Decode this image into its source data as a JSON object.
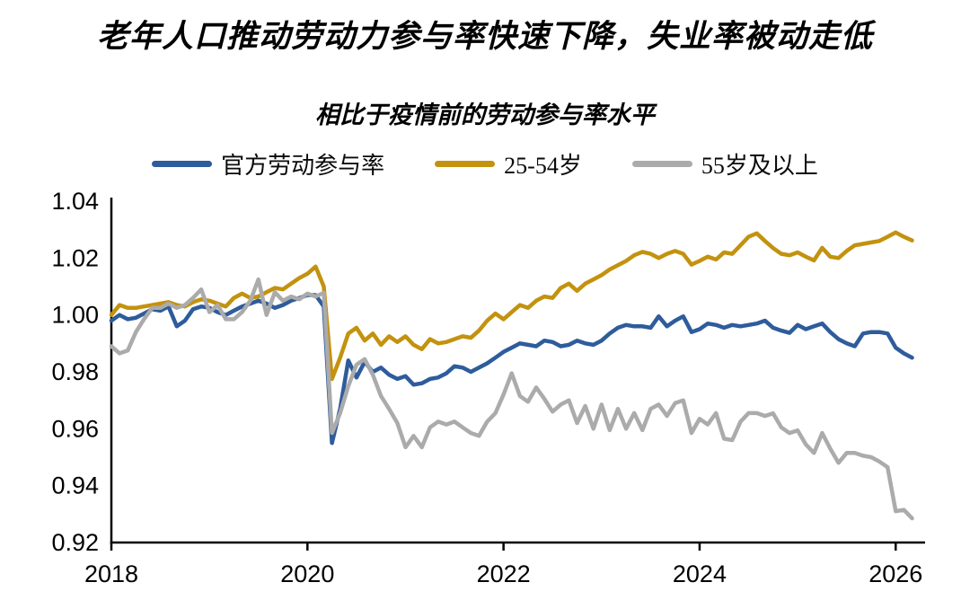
{
  "page": {
    "background": "#ffffff"
  },
  "chart_data": {
    "type": "line",
    "title": "老年人口推动劳动力参与率快速下降，失业率被动走低",
    "subtitle": "相比于疫情前的劳动参与率水平",
    "legend_position": "top",
    "grid": false,
    "axis_color": "#000000",
    "xlim": [
      2018,
      2026.3
    ],
    "ylim": [
      0.92,
      1.04
    ],
    "x_ticks": [
      2018,
      2020,
      2022,
      2024,
      2026
    ],
    "x_tick_labels": [
      "2018",
      "2020",
      "2022",
      "2024",
      "2026"
    ],
    "y_ticks": [
      0.92,
      0.94,
      0.96,
      0.98,
      1.0,
      1.02,
      1.04
    ],
    "y_tick_labels": [
      "0.92",
      "0.94",
      "0.96",
      "0.98",
      "1.00",
      "1.02",
      "1.04"
    ],
    "x_unit": "year, monthly points",
    "x": [
      2018.0,
      2018.083,
      2018.167,
      2018.25,
      2018.333,
      2018.417,
      2018.5,
      2018.583,
      2018.667,
      2018.75,
      2018.833,
      2018.917,
      2019.0,
      2019.083,
      2019.167,
      2019.25,
      2019.333,
      2019.417,
      2019.5,
      2019.583,
      2019.667,
      2019.75,
      2019.833,
      2019.917,
      2020.0,
      2020.083,
      2020.167,
      2020.25,
      2020.333,
      2020.417,
      2020.5,
      2020.583,
      2020.667,
      2020.75,
      2020.833,
      2020.917,
      2021.0,
      2021.083,
      2021.167,
      2021.25,
      2021.333,
      2021.417,
      2021.5,
      2021.583,
      2021.667,
      2021.75,
      2021.833,
      2021.917,
      2022.0,
      2022.083,
      2022.167,
      2022.25,
      2022.333,
      2022.417,
      2022.5,
      2022.583,
      2022.667,
      2022.75,
      2022.833,
      2022.917,
      2023.0,
      2023.083,
      2023.167,
      2023.25,
      2023.333,
      2023.417,
      2023.5,
      2023.583,
      2023.667,
      2023.75,
      2023.833,
      2023.917,
      2024.0,
      2024.083,
      2024.167,
      2024.25,
      2024.333,
      2024.417,
      2024.5,
      2024.583,
      2024.667,
      2024.75,
      2024.833,
      2024.917,
      2025.0,
      2025.083,
      2025.167,
      2025.25,
      2025.333,
      2025.417,
      2025.5,
      2025.583,
      2025.667,
      2025.75,
      2025.833,
      2025.917,
      2026.0,
      2026.083,
      2026.167
    ],
    "series": [
      {
        "name": "官方劳动参与率",
        "color": "#2E5C9C",
        "values": [
          0.998,
          1.0,
          0.9985,
          0.999,
          1.0005,
          1.002,
          1.0015,
          1.003,
          0.996,
          0.998,
          1.002,
          1.003,
          1.0025,
          1.001,
          1.0,
          1.0015,
          1.003,
          1.004,
          1.005,
          1.004,
          1.0025,
          1.0035,
          1.005,
          1.006,
          1.007,
          1.007,
          1.003,
          0.955,
          0.967,
          0.984,
          0.978,
          0.9835,
          0.98,
          0.9815,
          0.979,
          0.9775,
          0.9785,
          0.9755,
          0.976,
          0.9775,
          0.978,
          0.9795,
          0.982,
          0.9815,
          0.98,
          0.9815,
          0.983,
          0.985,
          0.987,
          0.9885,
          0.99,
          0.9895,
          0.989,
          0.991,
          0.9905,
          0.989,
          0.9895,
          0.991,
          0.99,
          0.9895,
          0.991,
          0.9935,
          0.9955,
          0.9965,
          0.996,
          0.996,
          0.9955,
          0.9995,
          0.996,
          0.998,
          0.9995,
          0.994,
          0.995,
          0.997,
          0.9965,
          0.9955,
          0.9965,
          0.996,
          0.9965,
          0.997,
          0.998,
          0.9955,
          0.9945,
          0.9937,
          0.9965,
          0.995,
          0.996,
          0.997,
          0.994,
          0.9915,
          0.99,
          0.989,
          0.9935,
          0.994,
          0.994,
          0.9935,
          0.9885,
          0.9865,
          0.985
        ]
      },
      {
        "name": "25-54岁",
        "color": "#C3920E",
        "values": [
          1.0,
          1.0035,
          1.0025,
          1.0025,
          1.003,
          1.0035,
          1.004,
          1.0045,
          1.0035,
          1.003,
          1.0045,
          1.0055,
          1.005,
          1.004,
          1.003,
          1.006,
          1.0075,
          1.006,
          1.0065,
          1.008,
          1.0095,
          1.009,
          1.011,
          1.013,
          1.0145,
          1.017,
          1.01,
          0.9775,
          0.985,
          0.9935,
          0.9955,
          0.991,
          0.9935,
          0.9895,
          0.9925,
          0.9905,
          0.9925,
          0.9895,
          0.988,
          0.9915,
          0.99,
          0.9905,
          0.9915,
          0.9925,
          0.992,
          0.9945,
          0.998,
          1.0005,
          0.9985,
          1.001,
          1.0035,
          1.0025,
          1.005,
          1.0065,
          1.006,
          1.0095,
          1.011,
          1.0085,
          1.011,
          1.0125,
          1.014,
          1.016,
          1.0175,
          1.019,
          1.021,
          1.0222,
          1.0215,
          1.02,
          1.0215,
          1.0225,
          1.0215,
          1.0177,
          1.019,
          1.0205,
          1.0195,
          1.022,
          1.0215,
          1.0245,
          1.0275,
          1.0287,
          1.026,
          1.0235,
          1.0215,
          1.021,
          1.022,
          1.0205,
          1.0192,
          1.0236,
          1.0205,
          1.02,
          1.0225,
          1.0245,
          1.025,
          1.0255,
          1.026,
          1.0275,
          1.029,
          1.0275,
          1.0262
        ]
      },
      {
        "name": "55岁及以上",
        "color": "#ABABAB",
        "values": [
          0.989,
          0.9865,
          0.9875,
          0.994,
          0.9985,
          1.0025,
          1.0025,
          1.004,
          1.0025,
          1.0035,
          1.006,
          1.009,
          1.001,
          1.0035,
          0.9985,
          0.9985,
          1.001,
          1.005,
          1.0125,
          1.0,
          1.008,
          1.005,
          1.0065,
          1.0055,
          1.0075,
          1.0065,
          1.0078,
          0.9585,
          0.9655,
          0.975,
          0.9825,
          0.9845,
          0.979,
          0.9715,
          0.967,
          0.962,
          0.9535,
          0.9575,
          0.9535,
          0.9605,
          0.9625,
          0.9615,
          0.9625,
          0.9605,
          0.9585,
          0.9575,
          0.9625,
          0.9655,
          0.972,
          0.9795,
          0.9715,
          0.9695,
          0.9745,
          0.9705,
          0.966,
          0.9685,
          0.97,
          0.962,
          0.968,
          0.96,
          0.9685,
          0.9595,
          0.967,
          0.96,
          0.9655,
          0.9595,
          0.967,
          0.9685,
          0.9645,
          0.969,
          0.97,
          0.9585,
          0.9635,
          0.9615,
          0.9655,
          0.9565,
          0.956,
          0.9625,
          0.9655,
          0.9655,
          0.9645,
          0.9654,
          0.9605,
          0.9585,
          0.9594,
          0.9545,
          0.9515,
          0.9585,
          0.953,
          0.948,
          0.9515,
          0.9515,
          0.9505,
          0.95,
          0.9485,
          0.9465,
          0.931,
          0.9315,
          0.9285
        ]
      }
    ]
  }
}
